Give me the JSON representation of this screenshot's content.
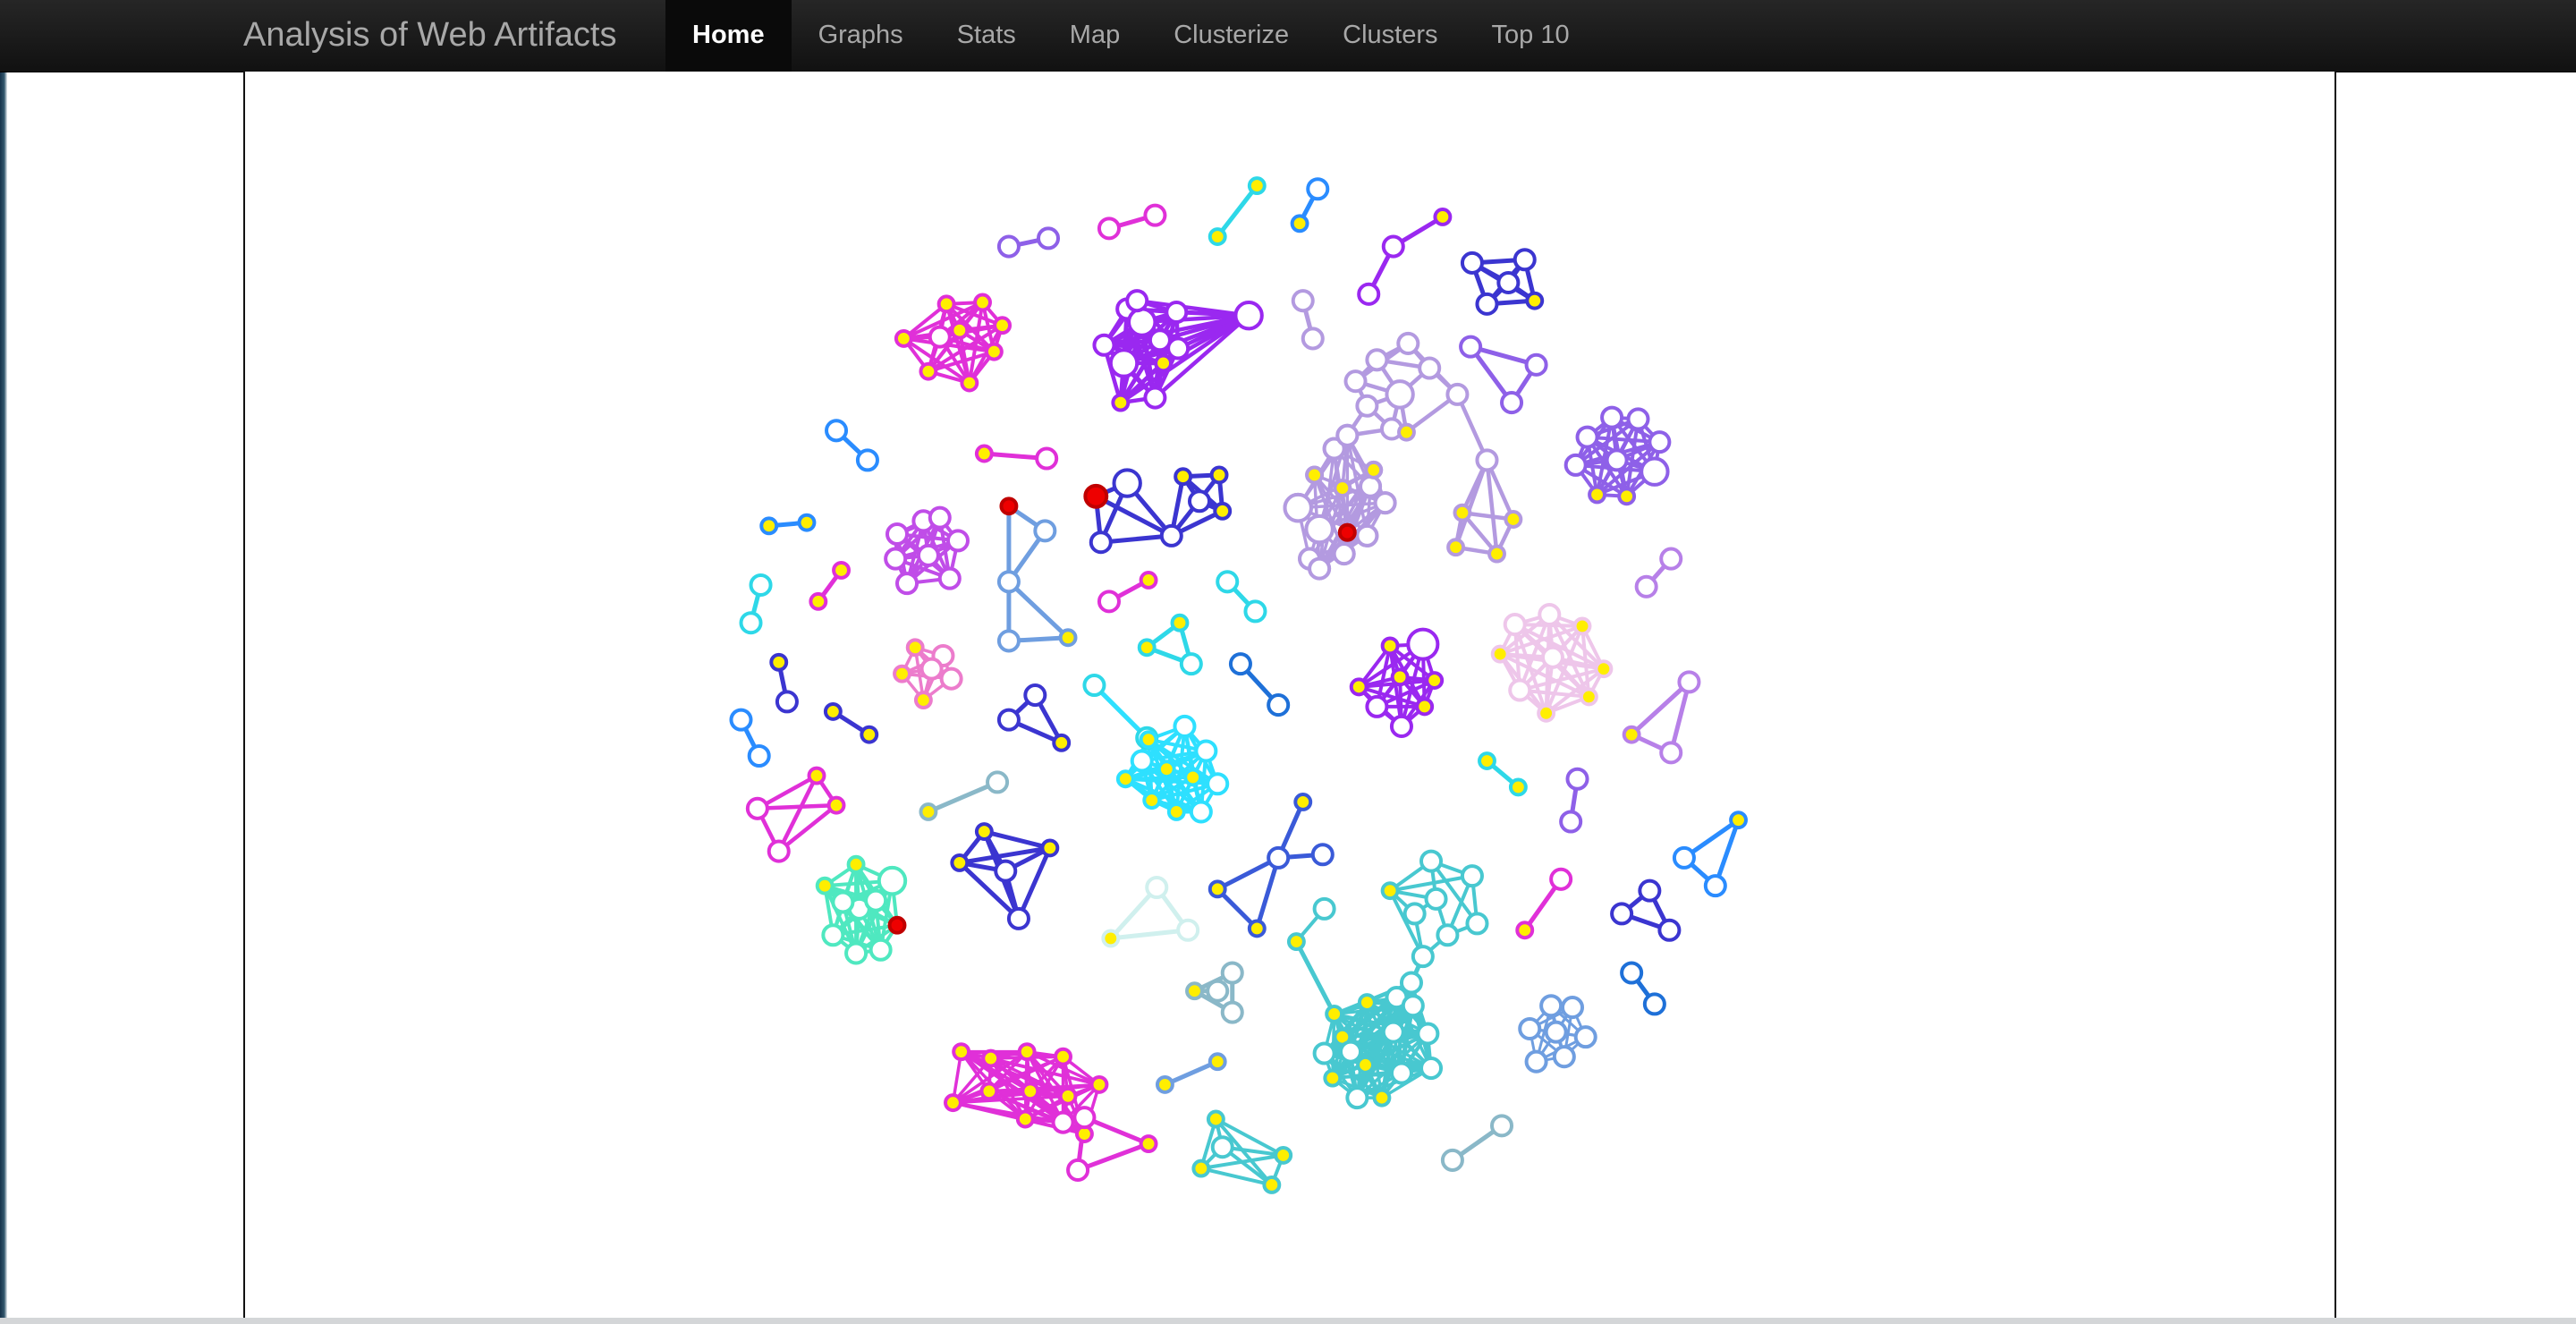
{
  "navbar": {
    "brand": "Analysis of Web Artifacts",
    "items": [
      {
        "label": "Home",
        "active": true
      },
      {
        "label": "Graphs",
        "active": false
      },
      {
        "label": "Stats",
        "active": false
      },
      {
        "label": "Map",
        "active": false
      },
      {
        "label": "Clusterize",
        "active": false
      },
      {
        "label": "Clusters",
        "active": false
      },
      {
        "label": "Top 10",
        "active": false
      }
    ]
  },
  "graph": {
    "node_fill_colors": {
      "default": "#ffffff",
      "highlight": "#ffee00",
      "alert": "#ee0000"
    },
    "cluster_colors": [
      "#e030d8",
      "#9a28f0",
      "#7fd0f0",
      "#2a8cff",
      "#c04de8",
      "#2ed8e8",
      "#3b35d0",
      "#8e60e8",
      "#5b4ad8",
      "#b39ae0",
      "#b780e8",
      "#eec6ea",
      "#2ee0ff",
      "#48c8d0",
      "#ec7ccc",
      "#4fe8c0",
      "#6f9ee0",
      "#a0e8e0",
      "#3a5ad8",
      "#1e70d8",
      "#d0f0ee",
      "#8ab8c8",
      "#b0e8e4"
    ]
  }
}
